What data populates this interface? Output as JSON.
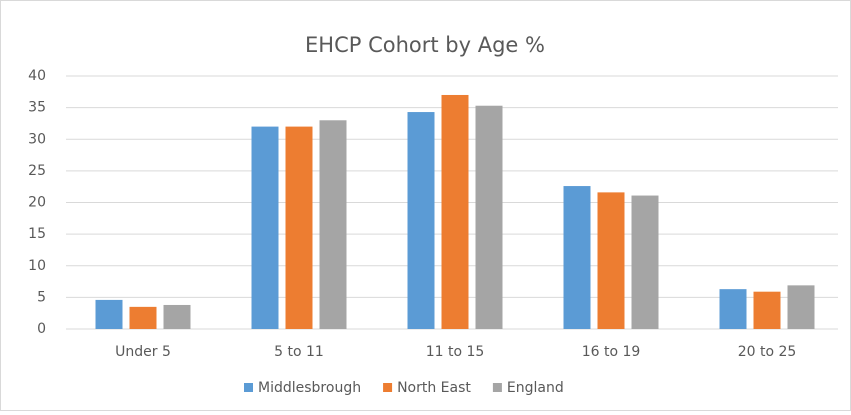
{
  "chart_data": {
    "type": "bar",
    "title": "EHCP Cohort by Age %",
    "categories": [
      "Under 5",
      "5 to 11",
      "11 to 15",
      "16 to 19",
      "20 to 25"
    ],
    "series": [
      {
        "name": "Middlesbrough",
        "color": "#5b9bd5",
        "values": [
          4.6,
          32,
          34.3,
          22.6,
          6.3
        ]
      },
      {
        "name": "North East",
        "color": "#ed7d31",
        "values": [
          3.5,
          32,
          37,
          21.6,
          5.9
        ]
      },
      {
        "name": "England",
        "color": "#a5a5a5",
        "values": [
          3.8,
          33,
          35.3,
          21.1,
          6.9
        ]
      }
    ],
    "ylim": [
      0,
      40
    ],
    "yticks": [
      0,
      5,
      10,
      15,
      20,
      25,
      30,
      35,
      40
    ],
    "grid": true,
    "legend": "bottom"
  }
}
